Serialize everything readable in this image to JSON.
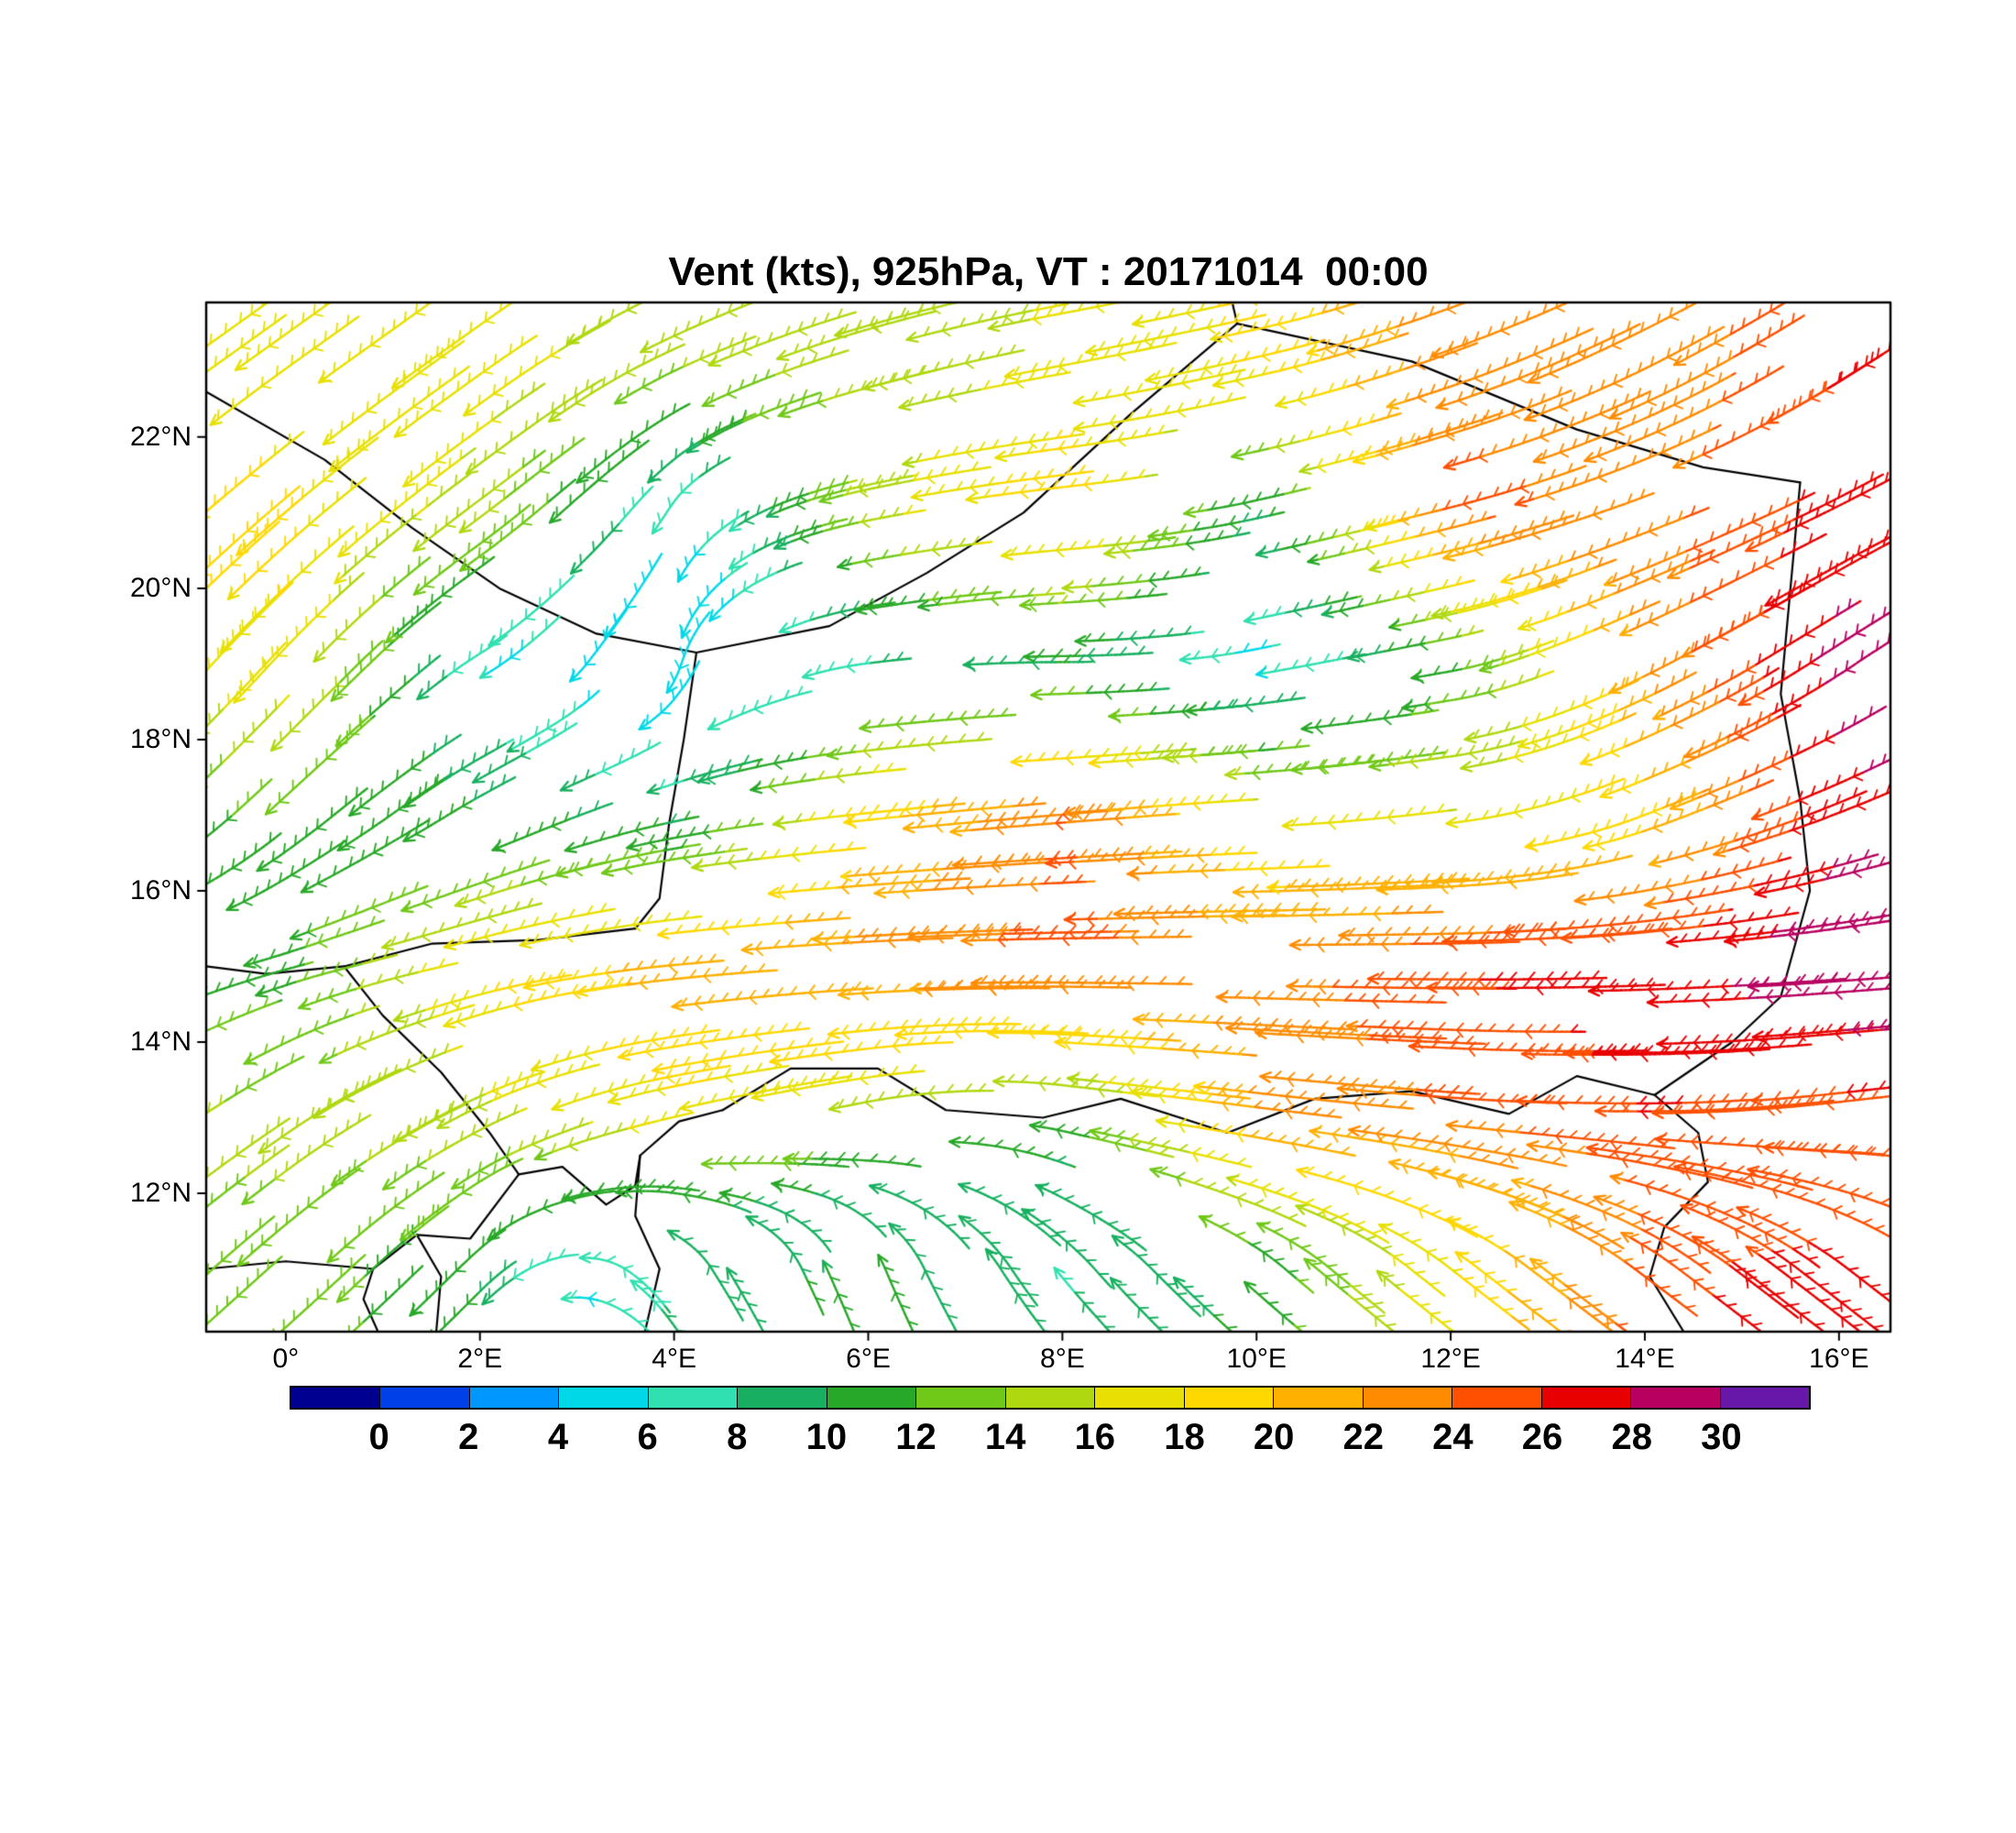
{
  "chart_data": {
    "type": "vector-field",
    "title": "Vent (kts), 925hPa, VT : 20171014  00:00",
    "variable": "wind speed",
    "units": "kts",
    "level": "925hPa",
    "valid_time": "20171014 00:00",
    "lon_range": [
      -0.82,
      16.53
    ],
    "lat_range": [
      10.17,
      23.78
    ],
    "x_ticks": [
      {
        "lon": 0,
        "label": "0°"
      },
      {
        "lon": 2,
        "label": "2°E"
      },
      {
        "lon": 4,
        "label": "4°E"
      },
      {
        "lon": 6,
        "label": "6°E"
      },
      {
        "lon": 8,
        "label": "8°E"
      },
      {
        "lon": 10,
        "label": "10°E"
      },
      {
        "lon": 12,
        "label": "12°E"
      },
      {
        "lon": 14,
        "label": "14°E"
      },
      {
        "lon": 16,
        "label": "16°E"
      }
    ],
    "y_ticks": [
      {
        "lat": 22,
        "label": "22°N"
      },
      {
        "lat": 20,
        "label": "20°N"
      },
      {
        "lat": 18,
        "label": "18°N"
      },
      {
        "lat": 16,
        "label": "16°N"
      },
      {
        "lat": 14,
        "label": "14°N"
      },
      {
        "lat": 12,
        "label": "12°N"
      }
    ],
    "colorbar": {
      "levels": [
        0,
        2,
        4,
        6,
        8,
        10,
        12,
        14,
        16,
        18,
        20,
        22,
        24,
        26,
        28,
        30
      ],
      "labels": [
        "0",
        "2",
        "4",
        "6",
        "8",
        "10",
        "12",
        "14",
        "16",
        "18",
        "20",
        "22",
        "24",
        "26",
        "28",
        "30"
      ],
      "colors": [
        "#000090",
        "#0040E8",
        "#0098FF",
        "#00D8E8",
        "#30E0B0",
        "#18B060",
        "#28A828",
        "#70C818",
        "#B0D810",
        "#E8E000",
        "#FFD800",
        "#FFB000",
        "#FF8C00",
        "#FF5000",
        "#E80000",
        "#B80060",
        "#6818A8"
      ]
    },
    "grid": {
      "lons": [
        0,
        2,
        4,
        6,
        8,
        10,
        12,
        14,
        16
      ],
      "lats": [
        23,
        21,
        19,
        17,
        15,
        13,
        11
      ],
      "u": [
        [
          -14,
          -14,
          -13,
          -14,
          -16,
          -18,
          -22,
          -20,
          -22
        ],
        [
          -14,
          -12,
          -3,
          -15,
          -20,
          -9,
          -24,
          -22,
          -24
        ],
        [
          -12,
          -5,
          -1,
          -8,
          -10,
          -5,
          -11,
          -20,
          -24
        ],
        [
          -9,
          -9,
          -9,
          -19,
          -24,
          -17,
          -16,
          -18,
          -26
        ],
        [
          -11,
          -18,
          -21,
          -23,
          -25,
          -23,
          -26,
          -27,
          -30
        ],
        [
          -12,
          -14,
          -17,
          -14,
          -11,
          -22,
          -24,
          -26,
          -25
        ],
        [
          -10,
          -7,
          -5,
          -4,
          -5,
          -8,
          -14,
          -20,
          -22
        ]
      ],
      "v": [
        [
          -10,
          -10,
          -6,
          -4,
          -3,
          -4,
          -8,
          -10,
          -14
        ],
        [
          -12,
          -9,
          -5,
          -3,
          -2,
          -2,
          -6,
          -8,
          -12
        ],
        [
          -13,
          -3,
          -4,
          -1,
          0,
          -1,
          -2,
          -10,
          -16
        ],
        [
          -8,
          -5,
          -2,
          -2,
          -2,
          -1,
          -2,
          -7,
          -10
        ],
        [
          -3,
          -4,
          -2,
          -1,
          0,
          0,
          0,
          -1,
          -2
        ],
        [
          -8,
          -7,
          -4,
          -3,
          2,
          3,
          2,
          0,
          -3
        ],
        [
          -9,
          -7,
          7,
          10,
          6,
          7,
          11,
          15,
          17
        ]
      ]
    },
    "borders": [
      [
        [
          -0.82,
          22.6
        ],
        [
          0.4,
          21.7
        ],
        [
          1.3,
          20.8
        ],
        [
          2.2,
          20.0
        ],
        [
          3.2,
          19.4
        ],
        [
          4.23,
          19.15
        ]
      ],
      [
        [
          4.23,
          19.15
        ],
        [
          5.6,
          19.5
        ],
        [
          6.6,
          20.2
        ],
        [
          7.6,
          21.0
        ],
        [
          8.7,
          22.3
        ],
        [
          9.8,
          23.5
        ]
      ],
      [
        [
          9.8,
          23.5
        ],
        [
          9.75,
          23.78
        ]
      ],
      [
        [
          9.8,
          23.5
        ],
        [
          11.6,
          23.0
        ],
        [
          13.3,
          22.1
        ],
        [
          14.6,
          21.6
        ],
        [
          15.6,
          21.4
        ]
      ],
      [
        [
          15.6,
          21.4
        ],
        [
          15.5,
          20.0
        ],
        [
          15.4,
          18.6
        ],
        [
          15.6,
          17.2
        ],
        [
          15.7,
          16.0
        ],
        [
          15.4,
          14.6
        ],
        [
          14.9,
          14.0
        ],
        [
          14.1,
          13.3
        ]
      ],
      [
        [
          4.23,
          19.15
        ],
        [
          4.1,
          18.0
        ],
        [
          3.95,
          16.9
        ],
        [
          3.85,
          15.9
        ],
        [
          3.6,
          15.5
        ]
      ],
      [
        [
          3.6,
          15.5
        ],
        [
          2.6,
          15.35
        ],
        [
          1.5,
          15.3
        ],
        [
          0.6,
          15.0
        ],
        [
          -0.2,
          14.9
        ],
        [
          -0.82,
          15.0
        ]
      ],
      [
        [
          0.6,
          15.0
        ],
        [
          1.0,
          14.35
        ],
        [
          1.6,
          13.6
        ],
        [
          2.1,
          12.8
        ],
        [
          2.4,
          12.25
        ]
      ],
      [
        [
          2.4,
          12.25
        ],
        [
          2.85,
          12.35
        ],
        [
          3.3,
          11.85
        ],
        [
          3.6,
          12.1
        ],
        [
          3.65,
          12.5
        ],
        [
          4.05,
          12.95
        ],
        [
          4.5,
          13.1
        ]
      ],
      [
        [
          4.5,
          13.1
        ],
        [
          5.2,
          13.65
        ],
        [
          6.1,
          13.65
        ],
        [
          6.8,
          13.1
        ],
        [
          7.8,
          13.0
        ],
        [
          8.6,
          13.25
        ],
        [
          9.7,
          12.8
        ],
        [
          10.6,
          13.25
        ],
        [
          11.6,
          13.35
        ],
        [
          12.6,
          13.05
        ],
        [
          13.3,
          13.55
        ],
        [
          14.1,
          13.3
        ]
      ],
      [
        [
          14.1,
          13.3
        ],
        [
          14.55,
          12.8
        ],
        [
          14.65,
          12.15
        ],
        [
          14.2,
          11.55
        ],
        [
          14.05,
          10.9
        ],
        [
          14.4,
          10.17
        ]
      ],
      [
        [
          3.65,
          12.5
        ],
        [
          3.6,
          11.7
        ],
        [
          3.85,
          11.0
        ],
        [
          3.7,
          10.17
        ]
      ],
      [
        [
          -0.82,
          11.0
        ],
        [
          0.0,
          11.1
        ],
        [
          0.9,
          11.0
        ],
        [
          1.35,
          11.45
        ],
        [
          1.9,
          11.4
        ],
        [
          2.4,
          12.25
        ]
      ],
      [
        [
          0.9,
          11.0
        ],
        [
          0.8,
          10.6
        ],
        [
          0.95,
          10.17
        ]
      ],
      [
        [
          1.35,
          11.45
        ],
        [
          1.6,
          10.9
        ],
        [
          1.55,
          10.17
        ]
      ]
    ]
  }
}
